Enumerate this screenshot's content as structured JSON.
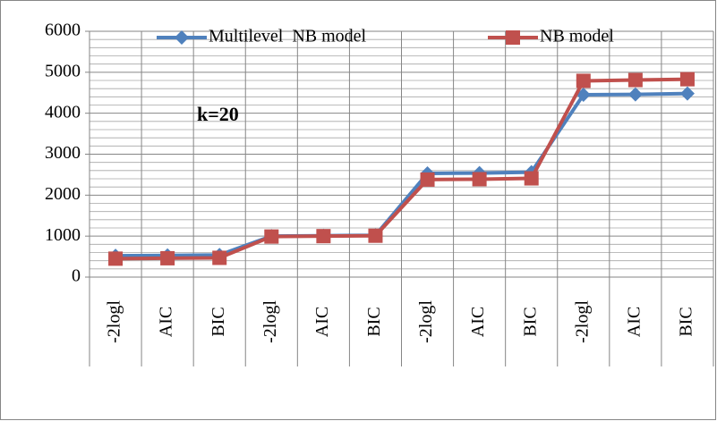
{
  "chart_data": {
    "type": "line",
    "annotation": "k=20",
    "categories": [
      "-2logl",
      "AIC",
      "BIC",
      "-2logl",
      "AIC",
      "BIC",
      "-2logl",
      "AIC",
      "BIC",
      "-2logl",
      "AIC",
      "BIC"
    ],
    "series": [
      {
        "name": "Multilevel  NB model",
        "color": "#4f81bd",
        "marker": "diamond",
        "values": [
          520,
          530,
          540,
          1000,
          1010,
          1020,
          2530,
          2540,
          2560,
          4450,
          4460,
          4480
        ]
      },
      {
        "name": "NB model",
        "color": "#c0504d",
        "marker": "square",
        "values": [
          450,
          460,
          470,
          990,
          1000,
          1010,
          2380,
          2390,
          2410,
          4790,
          4810,
          4830
        ]
      }
    ],
    "ylim": [
      0,
      6000
    ],
    "yticks": [
      0,
      1000,
      2000,
      3000,
      4000,
      5000,
      6000
    ],
    "grid": true
  }
}
